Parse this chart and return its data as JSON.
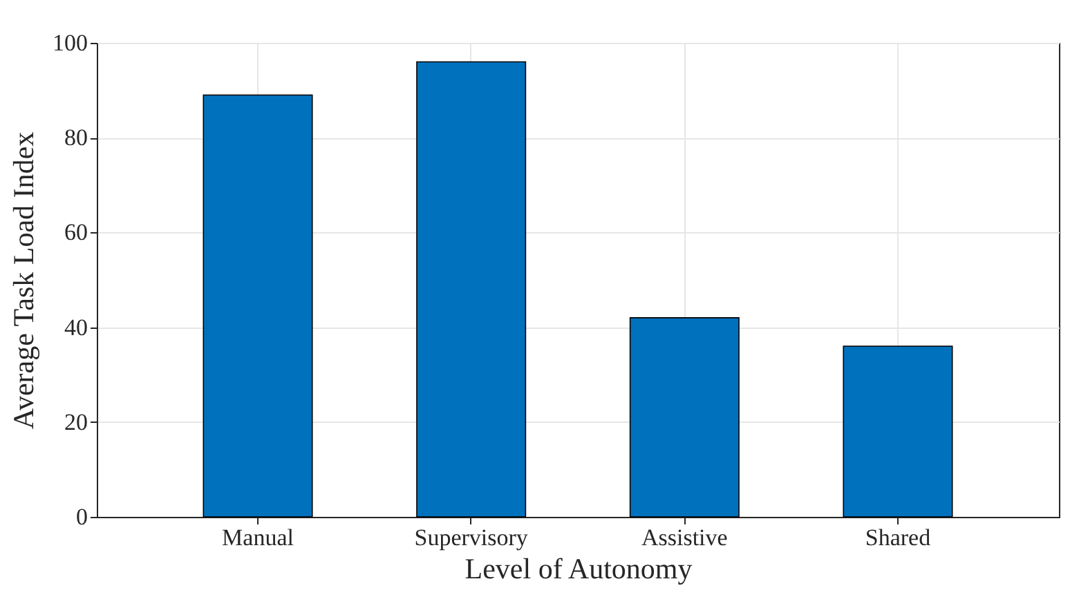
{
  "chart_data": {
    "type": "bar",
    "xlabel": "Level of Autonomy",
    "ylabel": "Average Task Load Index",
    "categories": [
      "Manual",
      "Supervisory",
      "Assistive",
      "Shared"
    ],
    "values": [
      89,
      96,
      42,
      36
    ],
    "color": "#0072bd",
    "ylim": [
      0,
      100
    ],
    "yticks": [
      0,
      20,
      40,
      60,
      80,
      100
    ],
    "grid": true
  }
}
